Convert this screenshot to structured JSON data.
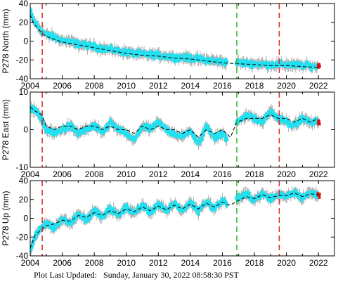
{
  "footer": {
    "label": "Plot Last Updated:",
    "timestamp": "Sunday, January 30, 2022 08:58:30 PST"
  },
  "chart_data": [
    {
      "type": "scatter",
      "ylabel": "P278 North (mm)",
      "xlim": [
        2004,
        2023
      ],
      "ylim": [
        -40,
        40
      ],
      "yticks": [
        -40,
        -20,
        0,
        20,
        40
      ],
      "xticks": [
        2004,
        2006,
        2008,
        2010,
        2012,
        2014,
        2016,
        2018,
        2020,
        2022
      ],
      "x": [
        2004.0,
        2004.2,
        2004.5,
        2004.7,
        2005.0,
        2005.5,
        2006.0,
        2007.0,
        2008.0,
        2009.0,
        2010.0,
        2011.0,
        2012.0,
        2013.0,
        2014.0,
        2015.0,
        2016.0,
        2016.8,
        2017.0,
        2018.0,
        2019.0,
        2019.5,
        2020.0,
        2021.0,
        2022.0
      ],
      "y": [
        32,
        22,
        15,
        11,
        7,
        4,
        1,
        -3,
        -6,
        -9,
        -12,
        -14,
        -15,
        -17,
        -18,
        -20,
        -22,
        -23,
        -23,
        -24,
        -25,
        -25,
        -25,
        -26,
        -27
      ],
      "model": [
        28,
        19,
        13,
        9,
        5,
        2,
        -1,
        -4,
        -7,
        -10,
        -13,
        -15,
        -16,
        -18,
        -19,
        -21,
        -23,
        -24,
        -24,
        -25,
        -26,
        -26,
        -26,
        -27,
        -28
      ],
      "events": [
        {
          "x": 2004.75,
          "color": "#dd2222"
        },
        {
          "x": 2016.9,
          "color": "#22bb22"
        },
        {
          "x": 2019.55,
          "color": "#dd2222"
        }
      ]
    },
    {
      "type": "scatter",
      "ylabel": "P278 East (mm)",
      "xlim": [
        2004,
        2023
      ],
      "ylim": [
        -10,
        10
      ],
      "yticks": [
        -10,
        0,
        10
      ],
      "xticks": [
        2004,
        2006,
        2008,
        2010,
        2012,
        2014,
        2016,
        2018,
        2020,
        2022
      ],
      "x": [
        2004.0,
        2004.3,
        2004.7,
        2005.0,
        2005.5,
        2006.0,
        2006.5,
        2007.0,
        2007.5,
        2008.0,
        2008.5,
        2009.0,
        2009.5,
        2010.0,
        2010.5,
        2011.0,
        2011.5,
        2012.0,
        2012.5,
        2013.0,
        2013.5,
        2014.0,
        2014.5,
        2015.0,
        2015.5,
        2016.0,
        2016.5,
        2016.9,
        2017.5,
        2018.0,
        2018.5,
        2019.0,
        2019.5,
        2020.0,
        2020.5,
        2021.0,
        2021.5,
        2022.0
      ],
      "y": [
        6,
        5,
        3,
        0,
        -1,
        0,
        1,
        -1,
        0,
        1,
        -1,
        2,
        0,
        -1,
        -3,
        1,
        0,
        2,
        0,
        -1,
        -2,
        0,
        -4,
        1,
        -2,
        -1,
        -4,
        2,
        4,
        3,
        2,
        5,
        3,
        2,
        1,
        3,
        2,
        2
      ],
      "model": [
        6,
        5,
        4,
        1,
        0,
        1,
        1,
        0,
        1,
        1,
        0,
        1,
        0,
        0,
        -1,
        1,
        0,
        1,
        0,
        0,
        -1,
        0,
        -2,
        0,
        -1,
        0,
        -2,
        2,
        3,
        3,
        3,
        4,
        3,
        3,
        2,
        3,
        2,
        3
      ],
      "events": [
        {
          "x": 2004.75,
          "color": "#dd2222"
        },
        {
          "x": 2016.9,
          "color": "#22bb22"
        },
        {
          "x": 2019.55,
          "color": "#dd2222"
        }
      ]
    },
    {
      "type": "scatter",
      "ylabel": "P278 Up (mm)",
      "xlim": [
        2004,
        2023
      ],
      "ylim": [
        -40,
        40
      ],
      "yticks": [
        -40,
        -20,
        0,
        20,
        40
      ],
      "xticks": [
        2004,
        2006,
        2008,
        2010,
        2012,
        2014,
        2016,
        2018,
        2020,
        2022
      ],
      "x": [
        2004.0,
        2004.3,
        2004.7,
        2005.0,
        2005.5,
        2006.0,
        2006.5,
        2007.0,
        2007.5,
        2008.0,
        2008.5,
        2009.0,
        2009.5,
        2010.0,
        2010.5,
        2011.0,
        2011.5,
        2012.0,
        2012.5,
        2013.0,
        2013.5,
        2014.0,
        2014.5,
        2015.0,
        2015.5,
        2016.0,
        2016.5,
        2016.9,
        2017.5,
        2018.0,
        2018.5,
        2019.0,
        2019.5,
        2020.0,
        2020.5,
        2021.0,
        2021.5,
        2022.0
      ],
      "y": [
        -35,
        -20,
        -10,
        -5,
        -10,
        0,
        -6,
        5,
        -2,
        8,
        1,
        10,
        3,
        12,
        5,
        14,
        6,
        15,
        7,
        16,
        8,
        17,
        8,
        18,
        10,
        19,
        12,
        21,
        25,
        20,
        26,
        21,
        25,
        24,
        28,
        22,
        27,
        24
      ],
      "model": [
        -32,
        -18,
        -12,
        -8,
        -6,
        -2,
        -3,
        3,
        1,
        6,
        3,
        8,
        5,
        10,
        7,
        12,
        8,
        13,
        9,
        14,
        10,
        15,
        10,
        16,
        12,
        17,
        14,
        18,
        23,
        21,
        25,
        22,
        24,
        24,
        27,
        23,
        26,
        25
      ],
      "events": [
        {
          "x": 2004.75,
          "color": "#dd2222"
        },
        {
          "x": 2016.9,
          "color": "#22bb22"
        },
        {
          "x": 2019.55,
          "color": "#dd2222"
        }
      ]
    }
  ]
}
